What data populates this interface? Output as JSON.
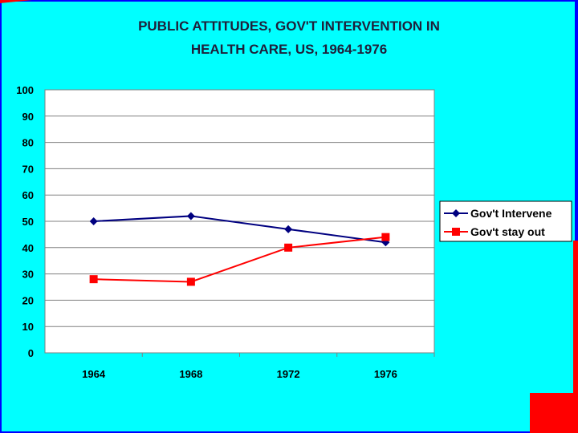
{
  "slide": {
    "title_line1": "PUBLIC ATTITUDES, GOV'T INTERVENTION IN",
    "title_line2": "HEALTH CARE, US, 1964-1976",
    "colors": {
      "background": "#00ffff",
      "frame": "#0000ff",
      "accent_red": "#ff0000",
      "plot_area": "#ffffff"
    }
  },
  "chart_data": {
    "type": "line",
    "title": "PUBLIC ATTITUDES, GOV'T INTERVENTION IN HEALTH CARE, US, 1964-1976",
    "categories": [
      "1964",
      "1968",
      "1972",
      "1976"
    ],
    "yticks": [
      "0",
      "10",
      "20",
      "30",
      "40",
      "50",
      "60",
      "70",
      "80",
      "90",
      "100"
    ],
    "ylim": [
      0,
      100
    ],
    "grid": true,
    "legend_position": "right",
    "series": [
      {
        "name": "Gov't Intervene",
        "values": [
          50,
          52,
          47,
          42
        ],
        "color": "#000080",
        "marker": "diamond"
      },
      {
        "name": "Gov't stay out",
        "values": [
          28,
          27,
          40,
          44
        ],
        "color": "#ff0000",
        "marker": "square"
      }
    ]
  }
}
